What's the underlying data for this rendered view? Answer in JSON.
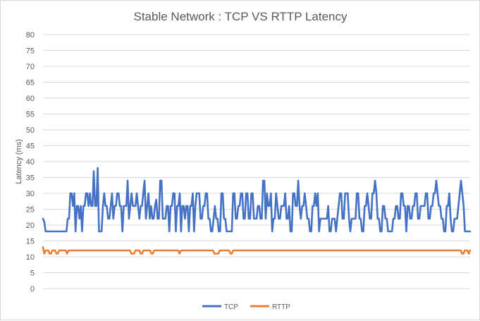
{
  "chart_data": {
    "type": "line",
    "title": "Stable Network : TCP VS RTTP Latency",
    "xlabel": "",
    "ylabel": "Latency (ms)",
    "ylim": [
      0,
      80
    ],
    "yticks": [
      "0",
      "5",
      "10",
      "15",
      "20",
      "25",
      "30",
      "35",
      "40",
      "45",
      "50",
      "55",
      "60",
      "65",
      "70",
      "75",
      "80"
    ],
    "grid": true,
    "legend_position": "bottom",
    "series": [
      {
        "name": "TCP",
        "color": "#4472C4",
        "values": [
          22,
          21,
          18,
          18,
          18,
          18,
          18,
          18,
          18,
          18,
          18,
          18,
          18,
          18,
          18,
          18,
          18,
          18,
          18,
          22,
          22,
          30,
          30,
          26,
          30,
          18,
          26,
          26,
          22,
          26,
          18,
          26,
          26,
          30,
          30,
          26,
          30,
          26,
          26,
          37,
          26,
          26,
          38,
          18,
          18,
          18,
          26,
          30,
          26,
          26,
          22,
          22,
          26,
          30,
          22,
          26,
          26,
          30,
          30,
          26,
          26,
          18,
          26,
          26,
          26,
          34,
          22,
          26,
          30,
          26,
          26,
          26,
          30,
          26,
          22,
          26,
          26,
          30,
          34,
          22,
          26,
          30,
          22,
          26,
          22,
          22,
          26,
          28,
          22,
          22,
          34,
          34,
          22,
          22,
          22,
          26,
          26,
          18,
          26,
          26,
          30,
          30,
          18,
          26,
          26,
          30,
          18,
          26,
          26,
          22,
          26,
          26,
          18,
          26,
          26,
          30,
          18,
          26,
          30,
          30,
          30,
          22,
          22,
          26,
          26,
          30,
          30,
          22,
          22,
          18,
          18,
          22,
          26,
          22,
          22,
          18,
          18,
          30,
          30,
          22,
          22,
          18,
          18,
          18,
          18,
          18,
          30,
          30,
          22,
          22,
          26,
          26,
          30,
          30,
          22,
          22,
          30,
          30,
          22,
          22,
          30,
          30,
          22,
          22,
          22,
          26,
          26,
          22,
          22,
          34,
          34,
          22,
          30,
          26,
          26,
          30,
          18,
          22,
          22,
          30,
          26,
          22,
          22,
          26,
          26,
          26,
          30,
          22,
          22,
          26,
          18,
          18,
          30,
          30,
          26,
          26,
          34,
          26,
          22,
          26,
          26,
          30,
          26,
          22,
          22,
          18,
          18,
          26,
          26,
          30,
          26,
          30,
          18,
          22,
          22,
          22,
          22,
          22,
          22,
          26,
          18,
          18,
          22,
          22,
          22,
          18,
          22,
          26,
          30,
          30,
          22,
          22,
          30,
          30,
          30,
          22,
          18,
          22,
          22,
          22,
          22,
          30,
          30,
          22,
          22,
          18,
          18,
          26,
          26,
          30,
          26,
          22,
          22,
          30,
          30,
          34,
          30,
          22,
          22,
          18,
          18,
          26,
          26,
          22,
          22,
          18,
          18,
          18,
          18,
          22,
          22,
          26,
          26,
          22,
          22,
          30,
          30,
          26,
          26,
          18,
          26,
          26,
          22,
          22,
          26,
          26,
          30,
          30,
          22,
          22,
          26,
          26,
          26,
          26,
          30,
          30,
          22,
          22,
          26,
          26,
          30,
          30,
          34,
          30,
          26,
          26,
          22,
          22,
          18,
          18,
          26,
          26,
          30,
          22,
          18,
          18,
          22,
          22,
          22,
          26,
          30,
          34,
          30,
          26,
          18,
          18,
          18,
          18,
          18
        ]
      },
      {
        "name": "RTTP",
        "color": "#ED7D31",
        "values": [
          13,
          11,
          12,
          12,
          12,
          11,
          11,
          12,
          12,
          12,
          11,
          11,
          12,
          12,
          12,
          12,
          12,
          12,
          11,
          12,
          12,
          12,
          12,
          12,
          12,
          12,
          12,
          12,
          12,
          12,
          12,
          12,
          12,
          12,
          12,
          12,
          12,
          12,
          12,
          12,
          12,
          12,
          12,
          12,
          12,
          12,
          12,
          12,
          12,
          12,
          12,
          12,
          12,
          12,
          12,
          12,
          12,
          12,
          12,
          12,
          12,
          12,
          12,
          12,
          12,
          12,
          11,
          11,
          11,
          12,
          12,
          12,
          12,
          11,
          11,
          12,
          12,
          12,
          12,
          12,
          12,
          11,
          11,
          12,
          12,
          12,
          12,
          12,
          12,
          12,
          12,
          12,
          12,
          12,
          12,
          12,
          12,
          12,
          12,
          12,
          12,
          12,
          11,
          12,
          12,
          12,
          12,
          12,
          12,
          12,
          12,
          12,
          12,
          12,
          12,
          12,
          12,
          12,
          12,
          12,
          12,
          12,
          12,
          12,
          12,
          12,
          12,
          12,
          11,
          11,
          11,
          11,
          12,
          12,
          12,
          12,
          12,
          12,
          12,
          12,
          11,
          11,
          12,
          12,
          12,
          12,
          12,
          12,
          12,
          12,
          12,
          12,
          12,
          12,
          12,
          12,
          12,
          12,
          12,
          12,
          12,
          12,
          12,
          12,
          12,
          12,
          12,
          12,
          12,
          12,
          12,
          12,
          12,
          12,
          12,
          12,
          12,
          12,
          12,
          12,
          12,
          12,
          12,
          12,
          12,
          12,
          12,
          12,
          12,
          12,
          12,
          12,
          12,
          12,
          12,
          12,
          12,
          12,
          12,
          12,
          12,
          12,
          12,
          12,
          12,
          12,
          12,
          12,
          12,
          12,
          12,
          12,
          12,
          12,
          12,
          12,
          12,
          12,
          12,
          12,
          12,
          12,
          12,
          12,
          12,
          12,
          12,
          12,
          12,
          12,
          12,
          12,
          12,
          12,
          12,
          12,
          12,
          12,
          12,
          12,
          12,
          12,
          12,
          12,
          12,
          12,
          12,
          12,
          12,
          12,
          12,
          12,
          12,
          12,
          12,
          12,
          12,
          12,
          12,
          12,
          12,
          12,
          12,
          12,
          12,
          12,
          12,
          12,
          12,
          12,
          12,
          12,
          12,
          12,
          12,
          12,
          12,
          12,
          12,
          12,
          12,
          12,
          12,
          12,
          12,
          12,
          12,
          12,
          12,
          12,
          12,
          12,
          12,
          12,
          12,
          12,
          12,
          12,
          12,
          12,
          12,
          12,
          12,
          12,
          12,
          12,
          12,
          12,
          12,
          12,
          12,
          12,
          12,
          11,
          11,
          12,
          12,
          12,
          11,
          12
        ]
      }
    ]
  }
}
